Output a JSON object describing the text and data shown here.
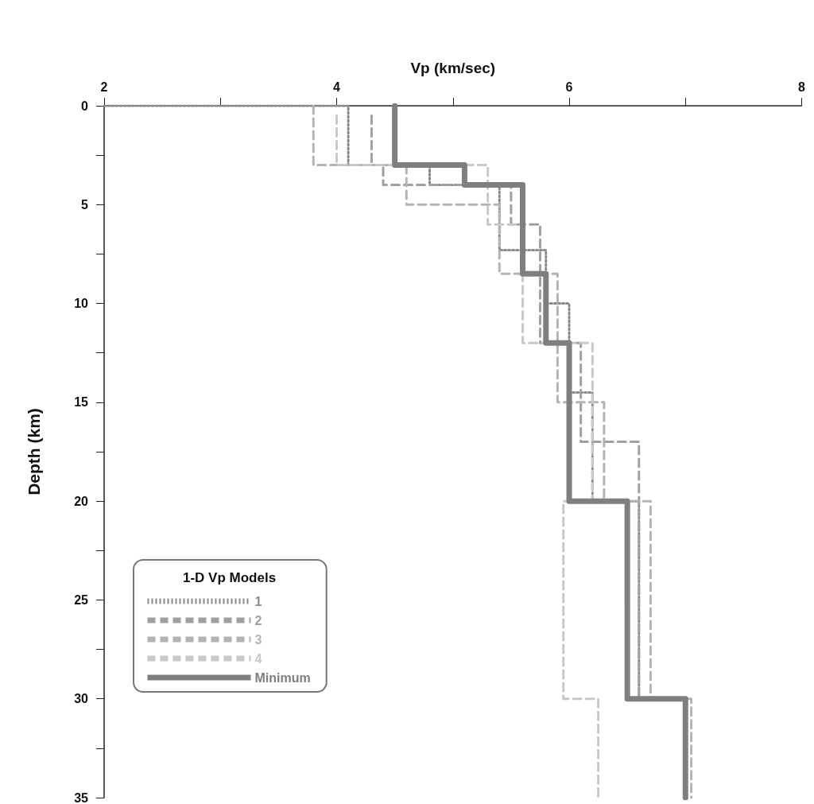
{
  "chart_data": {
    "type": "line",
    "xlabel": "Vp (km/sec)",
    "ylabel": "Depth (km)",
    "legend_title": "1-D Vp Models",
    "xlim": [
      2,
      8
    ],
    "xticks": [
      2,
      {
        "value": 3,
        "label": null
      },
      4,
      {
        "value": 5,
        "label": null
      },
      6,
      {
        "value": 7,
        "label": null
      },
      8
    ],
    "ylim": [
      35,
      0
    ],
    "yticks": [
      0,
      {
        "value": 2.5,
        "label": null
      },
      5,
      {
        "value": 7.5,
        "label": null
      },
      10,
      {
        "value": 12.5,
        "label": null
      },
      15,
      {
        "value": 17.5,
        "label": null
      },
      20,
      {
        "value": 22.5,
        "label": null
      },
      25,
      {
        "value": 27.5,
        "label": null
      },
      30,
      {
        "value": 32.5,
        "label": null
      },
      35
    ],
    "grid": false,
    "legend": "bottom left",
    "series": [
      {
        "name": "1",
        "color": "#8a8a8a",
        "line_style": "dotted",
        "x": [
          2.0,
          4.1,
          4.1,
          4.8,
          4.8,
          5.4,
          5.4,
          5.8,
          5.8,
          6.0,
          6.0,
          6.2,
          6.2,
          6.6,
          6.6,
          7.0,
          7.0
        ],
        "values": [
          0,
          0,
          3,
          3,
          4,
          4,
          7.3,
          7.3,
          10,
          10,
          14.5,
          14.5,
          20,
          20,
          30,
          30,
          35
        ]
      },
      {
        "name": "2",
        "color": "#a0a0a0",
        "line_style": "dashed",
        "x": [
          4.3,
          4.3,
          4.4,
          4.4,
          5.5,
          5.5,
          5.75,
          5.75,
          6.1,
          6.1,
          6.6,
          6.6,
          7.0,
          7.0
        ],
        "values": [
          0.5,
          3,
          3,
          4,
          4,
          6,
          6,
          12,
          12,
          17,
          17,
          30,
          30,
          35
        ]
      },
      {
        "name": "3",
        "color": "#b4b4b4",
        "line_style": "dashed",
        "x": [
          3.8,
          3.8,
          4.6,
          4.6,
          5.4,
          5.4,
          5.9,
          5.9,
          6.3,
          6.3,
          6.7,
          6.7,
          7.05,
          7.05
        ],
        "values": [
          0,
          3,
          3,
          5,
          5,
          8.5,
          8.5,
          15,
          15,
          20,
          20,
          30,
          30,
          35
        ]
      },
      {
        "name": "4",
        "color": "#c8c8c8",
        "line_style": "dashed",
        "x": [
          4.0,
          4.0,
          5.3,
          5.3,
          5.6,
          5.6,
          6.2,
          6.2,
          5.95,
          5.95,
          6.25,
          6.25
        ],
        "values": [
          0.5,
          3,
          3,
          6,
          6,
          12,
          12,
          20,
          20,
          30,
          30,
          35
        ]
      },
      {
        "name": "Minimum",
        "color": "#7f7f7f",
        "line_style": "solid",
        "x": [
          4.5,
          4.5,
          5.1,
          5.1,
          5.6,
          5.6,
          5.8,
          5.8,
          6.0,
          6.0,
          6.5,
          6.5,
          7.0,
          7.0
        ],
        "values": [
          0,
          3,
          3,
          4,
          4,
          8.5,
          8.5,
          12,
          12,
          20,
          20,
          30,
          30,
          35
        ]
      }
    ]
  }
}
